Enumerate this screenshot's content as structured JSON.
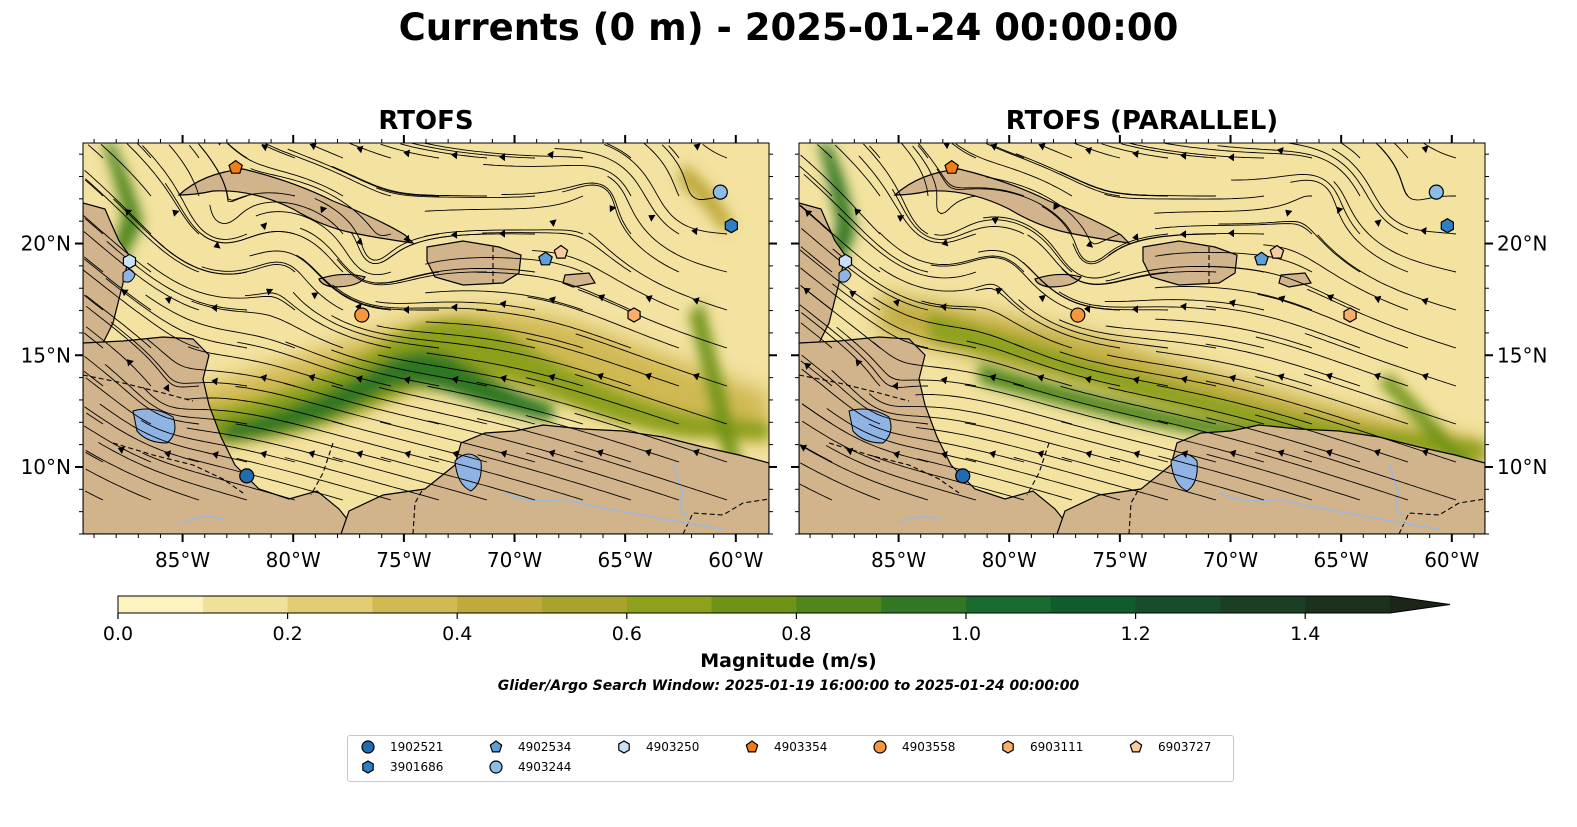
{
  "title": "Currents (0 m) - 2025-01-24 00:00:00",
  "panels": [
    {
      "title": "RTOFS"
    },
    {
      "title": "RTOFS (PARALLEL)"
    }
  ],
  "axes": {
    "x_ticks": [
      "85°W",
      "80°W",
      "75°W",
      "70°W",
      "65°W",
      "60°W"
    ],
    "x_values": [
      -85,
      -80,
      -75,
      -70,
      -65,
      -60
    ],
    "y_ticks": [
      "10°N",
      "15°N",
      "20°N"
    ],
    "y_values": [
      10,
      15,
      20
    ],
    "lon_range": [
      -89.5,
      -58.5
    ],
    "lat_range": [
      7,
      24.5
    ]
  },
  "colorbar": {
    "label": "Magnitude (m/s)",
    "ticks": [
      "0.0",
      "0.2",
      "0.4",
      "0.6",
      "0.8",
      "1.0",
      "1.2",
      "1.4"
    ],
    "tick_values": [
      0.0,
      0.2,
      0.4,
      0.6,
      0.8,
      1.0,
      1.2,
      1.4
    ],
    "range": [
      0,
      1.5
    ],
    "extend": "max",
    "colors": [
      "#fcf3c0",
      "#f0e19a",
      "#e2cd73",
      "#d1b953",
      "#bfaa3e",
      "#a9a22c",
      "#8fa01c",
      "#6e9317",
      "#4f861e",
      "#327824",
      "#196a2e",
      "#115c2f",
      "#174d2c",
      "#1a3f25",
      "#1b311d"
    ]
  },
  "search_window": "Glider/Argo Search Window: 2025-01-19 16:00:00 to 2025-01-24 00:00:00",
  "legend": {
    "placement": "bottom-center",
    "items": [
      {
        "label": "1902521",
        "marker": "circle",
        "color": "#1f6db0"
      },
      {
        "label": "3901686",
        "marker": "hexagon",
        "color": "#2f7fc4"
      },
      {
        "label": "4902534",
        "marker": "pentagon",
        "color": "#5d9fd6"
      },
      {
        "label": "4903244",
        "marker": "circle",
        "color": "#8dbde6"
      },
      {
        "label": "4903250",
        "marker": "hexagon",
        "color": "#c6e0f5"
      },
      {
        "label": "4903354",
        "marker": "pentagon",
        "color": "#f07d16"
      },
      {
        "label": "4903558",
        "marker": "circle",
        "color": "#f6973e"
      },
      {
        "label": "6903111",
        "marker": "hexagon",
        "color": "#f9ae6b"
      },
      {
        "label": "6903727",
        "marker": "pentagon",
        "color": "#fccb9c"
      }
    ]
  },
  "floats": [
    {
      "label": "1902521",
      "lon": -82.1,
      "lat": 9.6
    },
    {
      "label": "3901686",
      "lon": -60.2,
      "lat": 20.8
    },
    {
      "label": "4902534",
      "lon": -68.6,
      "lat": 19.3
    },
    {
      "label": "4903244",
      "lon": -60.7,
      "lat": 22.3
    },
    {
      "label": "4903250",
      "lon": -87.4,
      "lat": 19.2
    },
    {
      "label": "4903354",
      "lon": -82.6,
      "lat": 23.4
    },
    {
      "label": "4903558",
      "lon": -76.9,
      "lat": 16.8
    },
    {
      "label": "6903111",
      "lon": -64.6,
      "lat": 16.8
    },
    {
      "label": "6903727",
      "lon": -67.9,
      "lat": 19.6
    }
  ],
  "colors": {
    "land": "#d2b48c",
    "water_inland": "#8fb4e3",
    "ocean_base": "#f3e2a0"
  }
}
